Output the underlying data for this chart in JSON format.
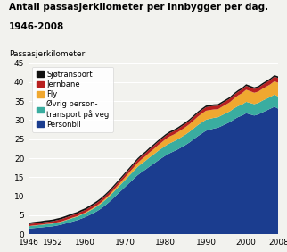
{
  "title_line1": "Antall passasjerkilometer per innbygger per dag.",
  "title_line2": "1946-2008",
  "ylabel": "Passasjerkilometer",
  "xlim": [
    1946,
    2008
  ],
  "ylim": [
    0,
    45
  ],
  "yticks": [
    0,
    5,
    10,
    15,
    20,
    25,
    30,
    35,
    40,
    45
  ],
  "xticks": [
    1946,
    1952,
    1960,
    1970,
    1980,
    1990,
    2000,
    2008
  ],
  "years": [
    1946,
    1947,
    1948,
    1949,
    1950,
    1951,
    1952,
    1953,
    1954,
    1955,
    1956,
    1957,
    1958,
    1959,
    1960,
    1961,
    1962,
    1963,
    1964,
    1965,
    1966,
    1967,
    1968,
    1969,
    1970,
    1971,
    1972,
    1973,
    1974,
    1975,
    1976,
    1977,
    1978,
    1979,
    1980,
    1981,
    1982,
    1983,
    1984,
    1985,
    1986,
    1987,
    1988,
    1989,
    1990,
    1991,
    1992,
    1993,
    1994,
    1995,
    1996,
    1997,
    1998,
    1999,
    2000,
    2001,
    2002,
    2003,
    2004,
    2005,
    2006,
    2007,
    2008
  ],
  "personbil": [
    1.5,
    1.6,
    1.7,
    1.8,
    1.9,
    2.0,
    2.1,
    2.3,
    2.5,
    2.8,
    3.1,
    3.4,
    3.7,
    4.1,
    4.5,
    5.0,
    5.5,
    6.1,
    6.8,
    7.6,
    8.5,
    9.5,
    10.5,
    11.5,
    12.5,
    13.5,
    14.5,
    15.5,
    16.3,
    17.0,
    17.8,
    18.5,
    19.3,
    20.0,
    20.7,
    21.3,
    21.8,
    22.3,
    22.9,
    23.5,
    24.2,
    25.0,
    25.8,
    26.5,
    27.2,
    27.5,
    27.8,
    28.0,
    28.5,
    29.0,
    29.5,
    30.2,
    30.8,
    31.2,
    31.8,
    31.5,
    31.2,
    31.5,
    32.0,
    32.5,
    33.0,
    33.5,
    33.0
  ],
  "ovrig": [
    0.6,
    0.65,
    0.65,
    0.65,
    0.7,
    0.7,
    0.7,
    0.75,
    0.75,
    0.8,
    0.85,
    0.9,
    0.9,
    1.0,
    1.0,
    1.1,
    1.2,
    1.25,
    1.3,
    1.4,
    1.45,
    1.55,
    1.65,
    1.75,
    1.85,
    1.95,
    2.05,
    2.15,
    2.25,
    2.3,
    2.4,
    2.45,
    2.5,
    2.55,
    2.6,
    2.6,
    2.6,
    2.65,
    2.7,
    2.75,
    2.8,
    2.85,
    2.9,
    2.9,
    2.9,
    2.85,
    2.8,
    2.75,
    2.8,
    2.8,
    2.85,
    2.9,
    2.9,
    2.9,
    3.0,
    3.0,
    3.0,
    3.0,
    3.1,
    3.1,
    3.1,
    3.2,
    3.2
  ],
  "fly": [
    0.05,
    0.05,
    0.06,
    0.06,
    0.07,
    0.07,
    0.08,
    0.09,
    0.1,
    0.1,
    0.12,
    0.13,
    0.15,
    0.17,
    0.2,
    0.22,
    0.25,
    0.28,
    0.32,
    0.37,
    0.42,
    0.48,
    0.55,
    0.63,
    0.72,
    0.82,
    0.92,
    1.02,
    1.12,
    1.2,
    1.3,
    1.4,
    1.5,
    1.6,
    1.7,
    1.8,
    1.8,
    1.85,
    1.9,
    1.95,
    2.0,
    2.1,
    2.2,
    2.3,
    2.35,
    2.3,
    2.2,
    2.1,
    2.2,
    2.3,
    2.4,
    2.6,
    2.8,
    3.0,
    3.2,
    3.1,
    3.0,
    3.0,
    3.1,
    3.2,
    3.3,
    3.5,
    3.6
  ],
  "jernbane": [
    0.5,
    0.52,
    0.53,
    0.54,
    0.55,
    0.56,
    0.57,
    0.58,
    0.6,
    0.62,
    0.63,
    0.65,
    0.66,
    0.67,
    0.68,
    0.69,
    0.7,
    0.71,
    0.72,
    0.73,
    0.74,
    0.75,
    0.76,
    0.77,
    0.78,
    0.79,
    0.8,
    0.81,
    0.82,
    0.83,
    0.84,
    0.85,
    0.86,
    0.87,
    0.88,
    0.89,
    0.88,
    0.87,
    0.88,
    0.89,
    0.9,
    0.91,
    0.92,
    0.93,
    0.94,
    0.94,
    0.93,
    0.93,
    0.94,
    0.95,
    0.96,
    0.97,
    0.98,
    0.99,
    1.0,
    1.0,
    1.0,
    1.0,
    1.05,
    1.1,
    1.15,
    1.2,
    1.25
  ],
  "sjotransport": [
    0.4,
    0.4,
    0.41,
    0.41,
    0.42,
    0.42,
    0.43,
    0.43,
    0.44,
    0.44,
    0.45,
    0.45,
    0.45,
    0.45,
    0.46,
    0.46,
    0.46,
    0.46,
    0.46,
    0.46,
    0.46,
    0.46,
    0.46,
    0.46,
    0.46,
    0.46,
    0.46,
    0.46,
    0.45,
    0.45,
    0.45,
    0.44,
    0.44,
    0.44,
    0.43,
    0.43,
    0.42,
    0.42,
    0.42,
    0.42,
    0.42,
    0.42,
    0.42,
    0.42,
    0.42,
    0.42,
    0.42,
    0.42,
    0.42,
    0.42,
    0.42,
    0.42,
    0.42,
    0.42,
    0.42,
    0.42,
    0.42,
    0.42,
    0.42,
    0.42,
    0.42,
    0.42,
    0.42
  ],
  "colors": {
    "personbil": "#1b3d8f",
    "ovrig": "#3aada0",
    "fly": "#f0a830",
    "jernbane": "#b82020",
    "sjotransport": "#111111"
  },
  "legend_labels": [
    "Sjøtransport",
    "Jernbane",
    "Fly",
    "Øvrig person-\ntransport på veg",
    "Personbil"
  ],
  "background_color": "#f2f2ee"
}
